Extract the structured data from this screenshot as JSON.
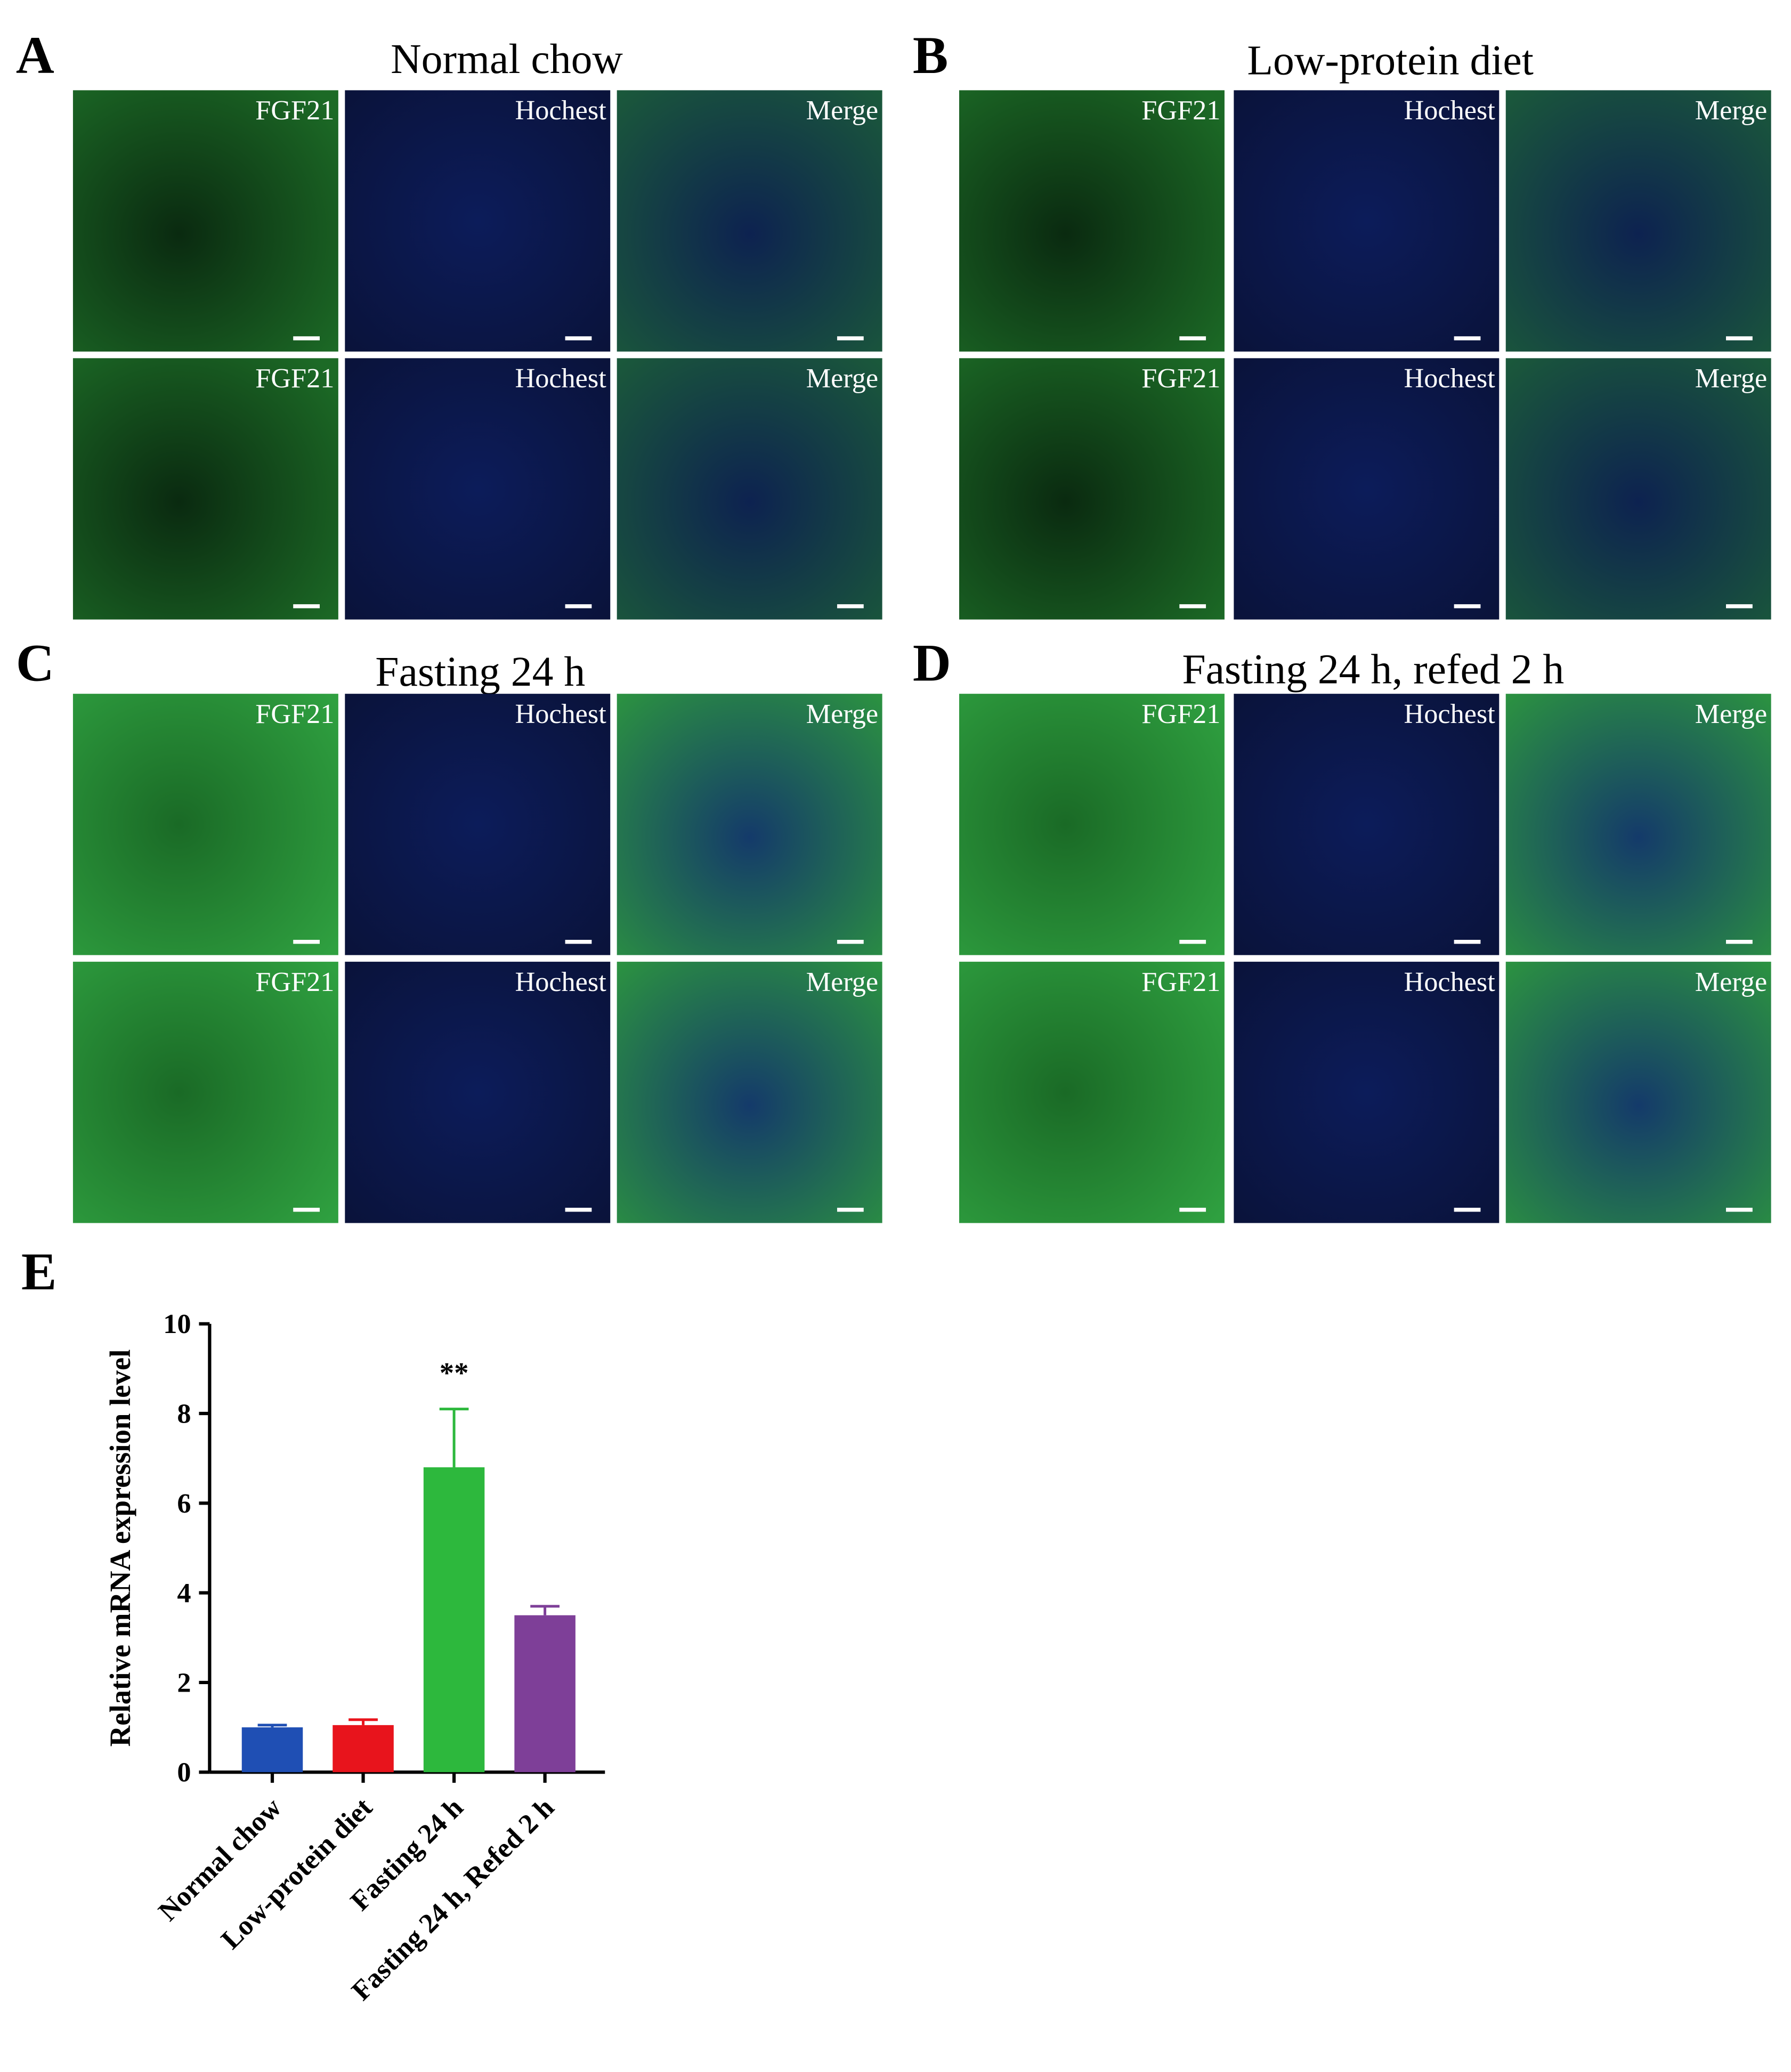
{
  "panels": [
    {
      "letter": "A",
      "title": "Normal chow",
      "images": [
        [
          "FGF21",
          "Hochest",
          "Merge"
        ],
        [
          "FGF21",
          "Hochest",
          "Merge"
        ]
      ]
    },
    {
      "letter": "B",
      "title": "Low-protein diet",
      "images": [
        [
          "FGF21",
          "Hochest",
          "Merge"
        ],
        [
          "FGF21",
          "Hochest",
          "Merge"
        ]
      ]
    },
    {
      "letter": "C",
      "title": "Fasting 24 h",
      "images": [
        [
          "FGF21",
          "Hochest",
          "Merge"
        ],
        [
          "FGF21",
          "Hochest",
          "Merge"
        ]
      ]
    },
    {
      "letter": "D",
      "title": "Fasting 24 h, refed 2 h",
      "images": [
        [
          "FGF21",
          "Hochest",
          "Merge"
        ],
        [
          "FGF21",
          "Hochest",
          "Merge"
        ]
      ]
    }
  ],
  "chart_data": {
    "type": "bar",
    "label": "E",
    "ylabel": "Relative mRNA expression level",
    "categories": [
      "Normal chow",
      "Low-protein diet",
      "Fasting 24 h",
      "Fasting 24 h, Refed 2 h"
    ],
    "values": [
      1.0,
      1.05,
      6.8,
      3.5
    ],
    "errors": [
      0.05,
      0.12,
      1.3,
      0.2
    ],
    "colors": [
      "#1f4fb4",
      "#e8141c",
      "#2db83d",
      "#7e3f98"
    ],
    "ylim": [
      0,
      10
    ],
    "yticks": [
      0,
      2,
      4,
      6,
      8,
      10
    ],
    "annotations": [
      {
        "text": "**",
        "category": "Fasting 24 h"
      }
    ]
  }
}
